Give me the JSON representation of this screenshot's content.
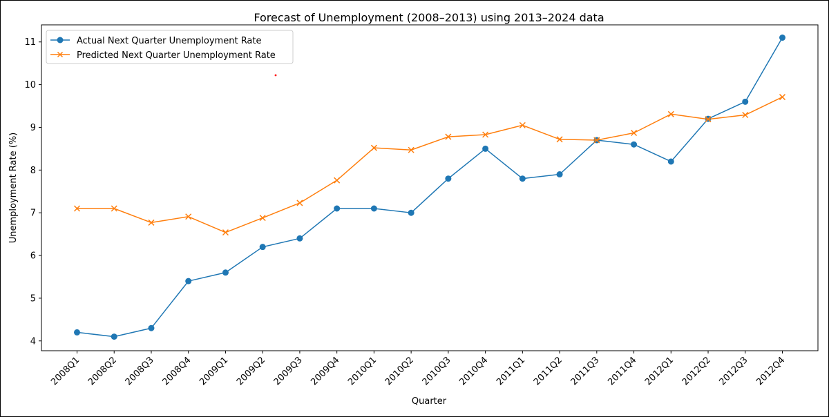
{
  "chart_data": {
    "type": "line",
    "title": "Forecast of Unemployment (2008–2013) using 2013–2024 data",
    "xlabel": "Quarter",
    "ylabel": "Unemployment Rate (%)",
    "categories": [
      "2008Q1",
      "2008Q2",
      "2008Q3",
      "2008Q4",
      "2009Q1",
      "2009Q2",
      "2009Q3",
      "2009Q4",
      "2010Q1",
      "2010Q2",
      "2010Q3",
      "2010Q4",
      "2011Q1",
      "2011Q2",
      "2011Q3",
      "2011Q4",
      "2012Q1",
      "2012Q2",
      "2012Q3",
      "2012Q4"
    ],
    "yticks": [
      4,
      5,
      6,
      7,
      8,
      9,
      10,
      11
    ],
    "ylim": [
      3.77,
      11.4
    ],
    "grid": false,
    "legend_position": "top-left",
    "series": [
      {
        "name": "Actual Next Quarter Unemployment Rate",
        "color": "#1f77b4",
        "marker": "circle",
        "values": [
          4.2,
          4.1,
          4.3,
          5.4,
          5.6,
          6.2,
          6.4,
          7.1,
          7.1,
          7.0,
          7.8,
          8.5,
          7.8,
          7.9,
          8.7,
          8.6,
          8.2,
          9.2,
          9.6,
          11.1
        ]
      },
      {
        "name": "Predicted Next Quarter Unemployment Rate",
        "color": "#ff7f0e",
        "marker": "x",
        "values": [
          7.1,
          7.1,
          6.77,
          6.91,
          6.54,
          6.88,
          7.23,
          7.76,
          8.52,
          8.47,
          8.78,
          8.83,
          9.05,
          8.72,
          8.7,
          8.87,
          9.31,
          9.19,
          9.29,
          9.71
        ]
      }
    ]
  }
}
